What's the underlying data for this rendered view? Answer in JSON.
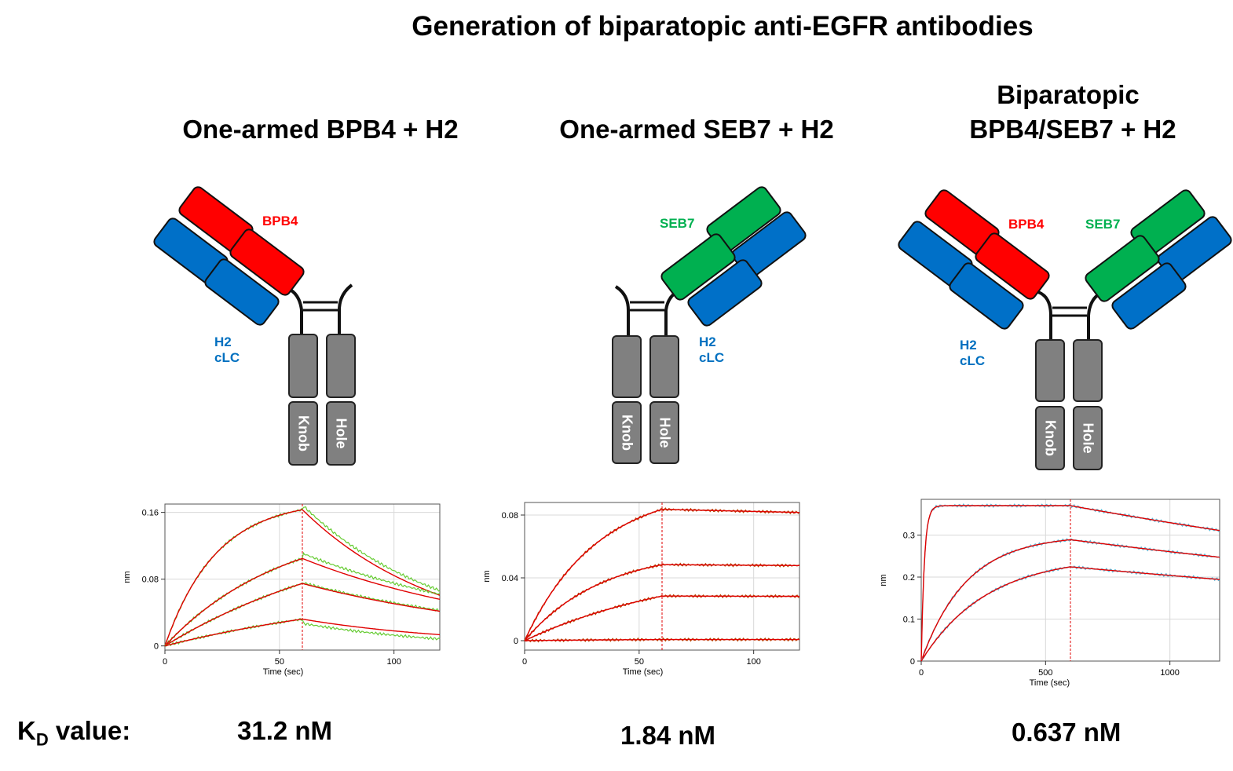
{
  "title": "Generation of biparatopic anti-EGFR antibodies",
  "panels": [
    {
      "title": "One-armed BPB4 + H2",
      "labels": {
        "arm1": "BPB4",
        "lc": "H2 cLC",
        "knob": "Knob",
        "hole": "Hole"
      },
      "kd": "31.2 nM"
    },
    {
      "title": "One-armed SEB7 + H2",
      "labels": {
        "arm1": "SEB7",
        "lc": "H2 cLC",
        "knob": "Knob",
        "hole": "Hole"
      },
      "kd": "1.84 nM"
    },
    {
      "title_line1": "Biparatopic",
      "title_line2": "BPB4/SEB7 + H2",
      "labels": {
        "arm1": "BPB4",
        "arm2": "SEB7",
        "lc": "H2 cLC",
        "knob": "Knob",
        "hole": "Hole"
      },
      "kd": "0.637 nM"
    }
  ],
  "kd_label": {
    "main": "K",
    "sub": "D",
    "rest": " value:"
  },
  "colors": {
    "bpb4": "#ff0000",
    "seb7": "#00b050",
    "h2": "#0070c0",
    "fc": "#808080",
    "fit": "#e00000"
  },
  "chart_data": [
    {
      "type": "line",
      "xlabel": "Time (sec)",
      "ylabel": "nm",
      "xlim": [
        0,
        120
      ],
      "ylim": [
        -0.005,
        0.17
      ],
      "xticks": [
        0,
        50,
        100
      ],
      "yticks": [
        0,
        0.08,
        0.16
      ],
      "ytick_labels": [
        "0",
        "0.08",
        "0.16"
      ],
      "dissociation_start": 60,
      "raw_color": "#66cc33",
      "series": [
        {
          "rmax": 0.175,
          "kobs": 0.045,
          "koff": 0.0165
        },
        {
          "rmax": 0.152,
          "kobs": 0.0195,
          "koff": 0.0105
        },
        {
          "rmax": 0.155,
          "kobs": 0.011,
          "koff": 0.0098
        },
        {
          "rmax": 0.074,
          "kobs": 0.0095,
          "koff": 0.0145
        }
      ]
    },
    {
      "type": "line",
      "xlabel": "Time (sec)",
      "ylabel": "nm",
      "xlim": [
        0,
        120
      ],
      "ylim": [
        -0.006,
        0.088
      ],
      "xticks": [
        0,
        50,
        100
      ],
      "yticks": [
        0,
        0.04,
        0.08
      ],
      "ytick_labels": [
        "0",
        "0.04",
        "0.08"
      ],
      "dissociation_start": 60,
      "raw_color": "#b34700",
      "series": [
        {
          "rmax": 0.098,
          "kobs": 0.032,
          "koff": 0.0004
        },
        {
          "rmax": 0.058,
          "kobs": 0.03,
          "koff": 0.0002
        },
        {
          "rmax": 0.05,
          "kobs": 0.014,
          "koff": 0.0001
        },
        {
          "rmax": 0.001,
          "kobs": 0.02,
          "koff": 0.0
        }
      ]
    },
    {
      "type": "line",
      "xlabel": "Time (sec)",
      "ylabel": "nm",
      "xlim": [
        0,
        1200
      ],
      "ylim": [
        0,
        0.385
      ],
      "xticks": [
        0,
        500,
        1000
      ],
      "yticks": [
        0,
        0.1,
        0.2,
        0.3
      ],
      "ytick_labels": [
        "0",
        "0.1",
        "0.2",
        "0.3"
      ],
      "dissociation_start": 600,
      "raw_color": "#5bb8d8",
      "series": [
        {
          "rmax": 0.37,
          "kobs": 0.08,
          "koff": 0.00029
        },
        {
          "rmax": 0.3,
          "kobs": 0.0055,
          "koff": 0.00026
        },
        {
          "rmax": 0.25,
          "kobs": 0.0038,
          "koff": 0.00024
        }
      ]
    }
  ]
}
